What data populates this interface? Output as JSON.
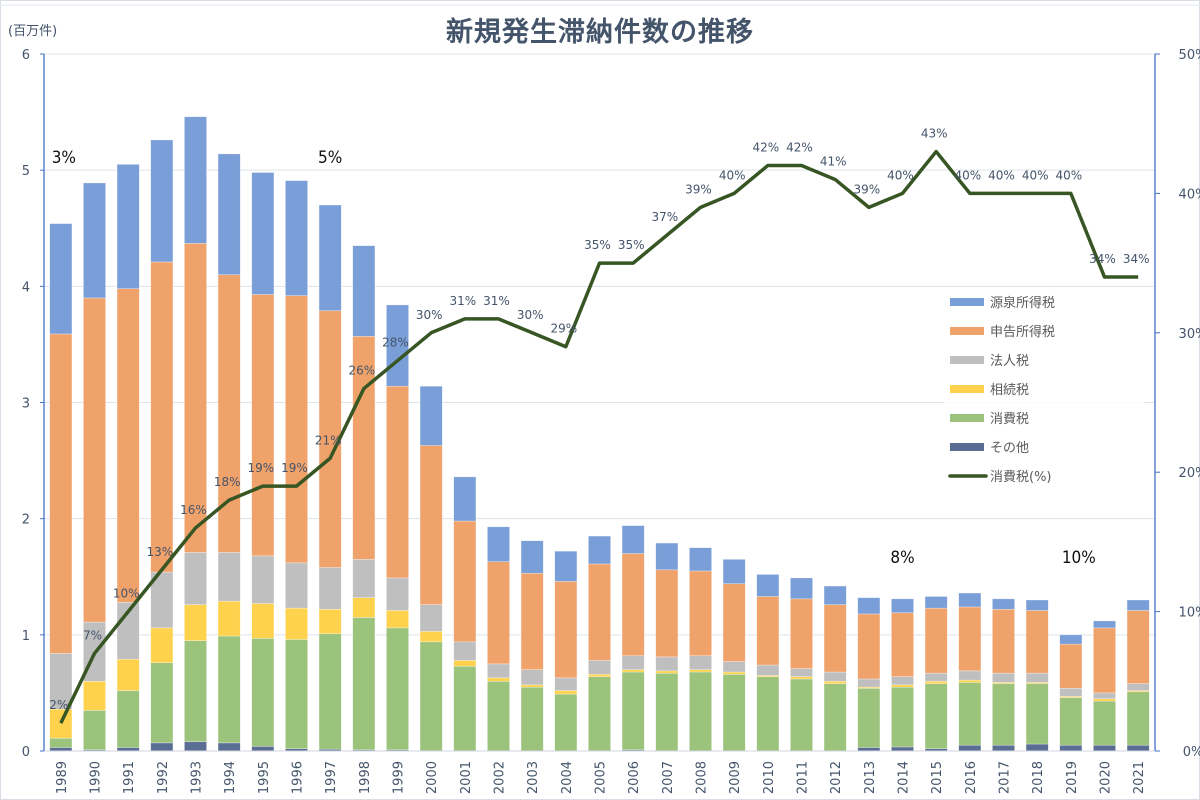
{
  "chart_data": {
    "type": "bar",
    "subtype": "stacked-bar-with-line",
    "title": "新規発生滞納件数の推移",
    "ylabel": "(百万件)",
    "y2label": "",
    "ylim": [
      0,
      6
    ],
    "y_ticks": [
      0,
      1,
      2,
      3,
      4,
      5,
      6
    ],
    "y2lim": [
      0,
      50
    ],
    "y2_ticks": [
      "0%",
      "10%",
      "20%",
      "30%",
      "40%",
      "50%"
    ],
    "y2_tick_values": [
      0,
      10,
      20,
      30,
      40,
      50
    ],
    "grid": true,
    "legend_position": "right-middle",
    "categories": [
      "1989",
      "1990",
      "1991",
      "1992",
      "1993",
      "1994",
      "1995",
      "1996",
      "1997",
      "1998",
      "1999",
      "2000",
      "2001",
      "2002",
      "2003",
      "2004",
      "2005",
      "2006",
      "2007",
      "2008",
      "2009",
      "2010",
      "2011",
      "2012",
      "2013",
      "2014",
      "2015",
      "2016",
      "2017",
      "2018",
      "2019",
      "2020",
      "2021"
    ],
    "series": [
      {
        "name": "その他",
        "color": "#5a6e94",
        "values": [
          0.03,
          0.01,
          0.03,
          0.07,
          0.08,
          0.07,
          0.04,
          0.02,
          0.015,
          0.01,
          0.01,
          0.0,
          0.0,
          0.0,
          0.0,
          0.0,
          0.0,
          0.01,
          0.0,
          0.0,
          0.0,
          0.0,
          0.0,
          0.0,
          0.03,
          0.035,
          0.02,
          0.05,
          0.05,
          0.06,
          0.05,
          0.05,
          0.05
        ]
      },
      {
        "name": "消費税",
        "color": "#9bc37c",
        "values": [
          0.08,
          0.34,
          0.49,
          0.69,
          0.87,
          0.92,
          0.93,
          0.94,
          0.995,
          1.14,
          1.05,
          0.94,
          0.73,
          0.6,
          0.55,
          0.49,
          0.64,
          0.67,
          0.67,
          0.68,
          0.66,
          0.64,
          0.62,
          0.58,
          0.51,
          0.515,
          0.56,
          0.54,
          0.53,
          0.52,
          0.41,
          0.38,
          0.46
        ]
      },
      {
        "name": "相続税",
        "color": "#ffd24d",
        "values": [
          0.25,
          0.25,
          0.27,
          0.3,
          0.31,
          0.3,
          0.3,
          0.27,
          0.21,
          0.17,
          0.15,
          0.09,
          0.05,
          0.03,
          0.02,
          0.03,
          0.02,
          0.02,
          0.02,
          0.02,
          0.02,
          0.01,
          0.02,
          0.02,
          0.01,
          0.02,
          0.02,
          0.02,
          0.01,
          0.01,
          0.01,
          0.02,
          0.01
        ]
      },
      {
        "name": "法人税",
        "color": "#bfbfbf",
        "values": [
          0.48,
          0.51,
          0.49,
          0.48,
          0.45,
          0.42,
          0.41,
          0.39,
          0.36,
          0.33,
          0.28,
          0.23,
          0.16,
          0.12,
          0.13,
          0.11,
          0.12,
          0.12,
          0.12,
          0.12,
          0.09,
          0.09,
          0.07,
          0.08,
          0.07,
          0.07,
          0.07,
          0.08,
          0.08,
          0.08,
          0.07,
          0.05,
          0.06
        ]
      },
      {
        "name": "申告所得税",
        "color": "#f0a26b",
        "values": [
          2.75,
          2.79,
          2.7,
          2.67,
          2.66,
          2.39,
          2.25,
          2.3,
          2.21,
          1.92,
          1.65,
          1.37,
          1.04,
          0.88,
          0.83,
          0.83,
          0.83,
          0.88,
          0.75,
          0.73,
          0.67,
          0.59,
          0.6,
          0.58,
          0.56,
          0.55,
          0.56,
          0.55,
          0.55,
          0.54,
          0.38,
          0.56,
          0.63
        ]
      },
      {
        "name": "源泉所得税",
        "color": "#7a9ed8",
        "values": [
          0.95,
          0.99,
          1.07,
          1.05,
          1.09,
          1.04,
          1.05,
          0.99,
          0.91,
          0.78,
          0.7,
          0.51,
          0.38,
          0.3,
          0.28,
          0.26,
          0.24,
          0.24,
          0.23,
          0.2,
          0.21,
          0.19,
          0.18,
          0.16,
          0.14,
          0.12,
          0.1,
          0.12,
          0.09,
          0.09,
          0.08,
          0.06,
          0.09
        ]
      }
    ],
    "line_series": {
      "name": "消費税(%)",
      "color": "#375623",
      "axis": "right",
      "values": [
        2,
        7,
        10,
        13,
        16,
        18,
        19,
        19,
        21,
        26,
        28,
        30,
        31,
        31,
        30,
        29,
        35,
        35,
        37,
        39,
        40,
        42,
        42,
        41,
        39,
        40,
        43,
        40,
        40,
        40,
        40,
        34,
        34
      ],
      "labels": [
        "2%",
        "7%",
        "10%",
        "13%",
        "16%",
        "18%",
        "19%",
        "19%",
        "21%",
        "26%",
        "28%",
        "30%",
        "31%",
        "31%",
        "30%",
        "29%",
        "35%",
        "35%",
        "37%",
        "39%",
        "40%",
        "42%",
        "42%",
        "41%",
        "39%",
        "40%",
        "43%",
        "40%",
        "40%",
        "40%",
        "40%",
        "34%",
        "34%"
      ]
    },
    "legend": [
      "源泉所得税",
      "申告所得税",
      "法人税",
      "相続税",
      "消費税",
      "その他",
      "消費税(%)"
    ],
    "annotations": [
      {
        "text": "3%",
        "category": "1989"
      },
      {
        "text": "5%",
        "category": "1997"
      },
      {
        "text": "8%",
        "category": "2014"
      },
      {
        "text": "10%",
        "category": "2019"
      }
    ]
  }
}
